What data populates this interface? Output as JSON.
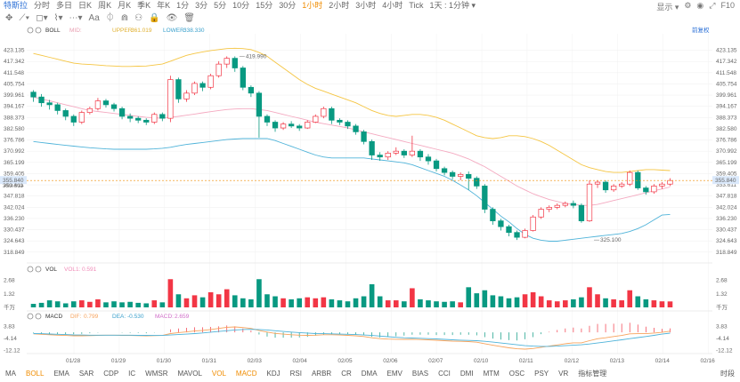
{
  "toolbar": {
    "title": "特斯拉",
    "tabs": [
      "分时",
      "多日",
      "日K",
      "周K",
      "月K",
      "季K",
      "年K",
      "1分",
      "3分",
      "5分",
      "10分",
      "15分",
      "30分",
      "1小时",
      "2小时",
      "3小时",
      "4小时",
      "Tick",
      "1天 : 1分钟 ▾"
    ],
    "active_tab": "1小时",
    "right": {
      "display": "显示 ▾",
      "f10": "F10"
    }
  },
  "drawbar": [
    "✥",
    "⟋▾",
    "◻▾",
    "⌇▾",
    "⋯▾",
    "Aa",
    "⏀",
    "⋒",
    "⚇",
    "🔒",
    "👁",
    "🗑"
  ],
  "bottombar": {
    "items": [
      "MA",
      "BOLL",
      "EMA",
      "SAR",
      "CDP",
      "IC",
      "WMSR",
      "MAVOL",
      "VOL",
      "MACD",
      "KDJ",
      "RSI",
      "ARBR",
      "CR",
      "DMA",
      "EMV",
      "BIAS",
      "CCI",
      "DMI",
      "MTM",
      "OSC",
      "PSY",
      "VR",
      "指标管理"
    ],
    "active": [
      "BOLL",
      "VOL",
      "MACD"
    ],
    "right_label": "时段"
  },
  "colors": {
    "up": "#f23645",
    "down": "#089981",
    "upper": "#f5c542",
    "mid": "#f4a9c0",
    "lower": "#4fb3d9",
    "ma5": "#f7c15c",
    "dif": "#f7a35c",
    "dea": "#4fb3d9",
    "macd": "#e28cd8",
    "price_line": "#f08c00"
  },
  "chart_data": [
    {
      "type": "candlestick",
      "indicator": {
        "name": "BOLL",
        "params": "BOLL",
        "mid_label": "MID:",
        "mid_value": "",
        "upper_label": "UPPER:",
        "upper_value": "361.019",
        "lower_label": "LOWER:",
        "lower_value": "338.330"
      },
      "right_label": "前复权",
      "y_ticks": [
        "423.135",
        "417.342",
        "411.548",
        "405.754",
        "399.961",
        "394.167",
        "388.373",
        "382.580",
        "376.786",
        "370.992",
        "365.199",
        "359.405",
        "353.611",
        "347.818",
        "342.024",
        "336.230",
        "330.437",
        "324.643",
        "318.849"
      ],
      "ylim": [
        316,
        428
      ],
      "x_labels": [
        "01/28",
        "01/29",
        "01/30",
        "01/31",
        "02/03",
        "02/04",
        "02/05",
        "02/06",
        "02/07",
        "02/10",
        "02/11",
        "02/12",
        "02/13",
        "02/14",
        "02/16"
      ],
      "annotations": [
        {
          "text": "419.990",
          "x": 27,
          "y": 420.0
        },
        {
          "text": "325.100",
          "x": 71,
          "y": 325.1
        }
      ],
      "last_price": "355.840",
      "last_price_sub": "353.611",
      "last_value": 355.84,
      "candles": [
        [
          401.5,
          399.0,
          402.5,
          396.5
        ],
        [
          399.0,
          396.0,
          400.5,
          394.0
        ],
        [
          396.0,
          395.0,
          397.5,
          392.5
        ],
        [
          395.0,
          392.0,
          396.0,
          390.0
        ],
        [
          392.0,
          389.0,
          393.0,
          387.0
        ],
        [
          389.0,
          386.0,
          390.0,
          384.0
        ],
        [
          386.0,
          391.0,
          392.0,
          385.0
        ],
        [
          391.0,
          393.0,
          394.0,
          390.0
        ],
        [
          393.0,
          397.0,
          398.5,
          392.0
        ],
        [
          397.0,
          395.0,
          398.0,
          393.5
        ],
        [
          395.0,
          393.0,
          396.0,
          391.5
        ],
        [
          393.0,
          389.0,
          394.0,
          387.5
        ],
        [
          389.0,
          388.0,
          390.5,
          386.0
        ],
        [
          388.0,
          387.0,
          389.0,
          385.5
        ],
        [
          387.0,
          386.0,
          388.0,
          384.5
        ],
        [
          386.0,
          390.0,
          391.0,
          385.0
        ],
        [
          390.0,
          388.0,
          391.0,
          386.5
        ],
        [
          388.0,
          408.0,
          410.0,
          386.0
        ],
        [
          408.0,
          398.0,
          409.0,
          396.0
        ],
        [
          398.0,
          401.0,
          402.5,
          396.5
        ],
        [
          401.0,
          406.0,
          407.0,
          400.0
        ],
        [
          406.0,
          404.0,
          407.0,
          402.0
        ],
        [
          404.0,
          410.0,
          411.0,
          403.0
        ],
        [
          410.0,
          416.0,
          417.5,
          409.0
        ],
        [
          416.0,
          419.0,
          420.0,
          414.0
        ],
        [
          419.0,
          414.0,
          420.0,
          412.0
        ],
        [
          414.0,
          404.0,
          415.0,
          402.5
        ],
        [
          404.0,
          401.0,
          405.0,
          399.0
        ],
        [
          401.0,
          389.0,
          402.0,
          378.0
        ],
        [
          389.0,
          386.0,
          390.0,
          384.0
        ],
        [
          386.0,
          383.0,
          387.0,
          381.0
        ],
        [
          383.0,
          385.0,
          386.0,
          382.0
        ],
        [
          385.0,
          384.0,
          386.5,
          383.0
        ],
        [
          384.0,
          383.0,
          385.0,
          381.5
        ],
        [
          383.0,
          386.0,
          387.0,
          382.5
        ],
        [
          386.0,
          389.0,
          390.0,
          385.5
        ],
        [
          389.0,
          393.0,
          394.0,
          388.0
        ],
        [
          393.0,
          387.0,
          394.0,
          385.0
        ],
        [
          387.0,
          386.0,
          388.0,
          384.5
        ],
        [
          386.0,
          384.0,
          387.0,
          382.5
        ],
        [
          384.0,
          381.0,
          385.0,
          379.5
        ],
        [
          381.0,
          376.0,
          382.0,
          374.5
        ],
        [
          376.0,
          369.0,
          377.0,
          366.5
        ],
        [
          369.0,
          368.0,
          370.5,
          366.0
        ],
        [
          368.0,
          370.0,
          371.0,
          366.5
        ],
        [
          370.0,
          371.0,
          373.0,
          369.0
        ],
        [
          371.0,
          369.0,
          372.0,
          367.5
        ],
        [
          369.0,
          371.0,
          379.0,
          368.0
        ],
        [
          371.0,
          368.0,
          372.0,
          366.0
        ],
        [
          368.0,
          366.0,
          369.5,
          364.0
        ],
        [
          366.0,
          362.0,
          367.0,
          360.5
        ],
        [
          362.0,
          360.0,
          363.0,
          358.5
        ],
        [
          360.0,
          358.0,
          361.0,
          356.5
        ],
        [
          358.0,
          359.0,
          360.0,
          356.0
        ],
        [
          359.0,
          357.0,
          360.5,
          351.0
        ],
        [
          357.0,
          353.0,
          358.0,
          351.5
        ],
        [
          353.0,
          341.0,
          354.0,
          339.0
        ],
        [
          341.0,
          335.0,
          342.0,
          333.0
        ],
        [
          335.0,
          332.0,
          336.0,
          330.0
        ],
        [
          332.0,
          329.0,
          333.0,
          327.0
        ],
        [
          329.0,
          326.5,
          330.0,
          325.1
        ],
        [
          326.5,
          330.0,
          331.0,
          326.0
        ],
        [
          330.0,
          337.0,
          338.0,
          329.5
        ],
        [
          337.0,
          341.0,
          342.0,
          336.0
        ],
        [
          341.0,
          342.0,
          343.0,
          339.5
        ],
        [
          342.0,
          343.0,
          344.0,
          341.0
        ],
        [
          343.0,
          344.0,
          345.0,
          342.0
        ],
        [
          344.0,
          343.0,
          345.5,
          341.5
        ],
        [
          343.0,
          335.0,
          344.0,
          334.0
        ],
        [
          335.0,
          354.0,
          356.0,
          334.5
        ],
        [
          354.0,
          355.0,
          356.0,
          352.0
        ],
        [
          355.0,
          351.0,
          356.0,
          349.5
        ],
        [
          351.0,
          353.0,
          354.0,
          350.0
        ],
        [
          353.0,
          354.0,
          355.0,
          352.0
        ],
        [
          354.0,
          360.0,
          361.0,
          353.0
        ],
        [
          360.0,
          352.0,
          361.0,
          351.0
        ],
        [
          352.0,
          350.0,
          353.0,
          348.5
        ],
        [
          350.0,
          353.0,
          354.0,
          349.0
        ],
        [
          353.0,
          354.0,
          355.0,
          351.5
        ],
        [
          354.0,
          355.84,
          357.0,
          353.0
        ]
      ],
      "upper": [
        421.5,
        420.5,
        419.5,
        418.5,
        417.5,
        416.5,
        416.0,
        415.8,
        415.5,
        415.2,
        415.0,
        414.8,
        414.8,
        414.9,
        415.0,
        415.5,
        416.0,
        417.5,
        419.0,
        420.5,
        421.5,
        422.3,
        423.0,
        423.5,
        424.0,
        424.2,
        424.0,
        423.5,
        422.0,
        420.0,
        417.0,
        414.0,
        411.0,
        408.0,
        405.5,
        403.5,
        402.0,
        400.5,
        399.0,
        397.5,
        396.0,
        394.0,
        392.0,
        390.5,
        389.5,
        389.0,
        389.5,
        390.0,
        390.0,
        389.5,
        388.5,
        387.0,
        385.0,
        383.0,
        381.0,
        379.0,
        378.0,
        377.5,
        378.0,
        379.0,
        379.0,
        378.5,
        377.5,
        376.0,
        374.0,
        371.5,
        369.0,
        366.5,
        364.0,
        362.5,
        361.5,
        360.5,
        360.0,
        360.0,
        360.5,
        361.0,
        361.5,
        361.5,
        361.2,
        361.0
      ],
      "mid": [
        399.0,
        398.0,
        397.0,
        396.0,
        395.0,
        394.0,
        393.0,
        392.0,
        391.5,
        391.0,
        390.5,
        390.0,
        389.5,
        389.0,
        388.5,
        388.2,
        388.0,
        388.5,
        389.0,
        389.6,
        390.2,
        390.8,
        391.4,
        392.0,
        392.5,
        392.8,
        393.0,
        393.0,
        392.5,
        392.0,
        391.0,
        390.0,
        389.0,
        388.0,
        387.0,
        386.0,
        385.2,
        384.5,
        383.8,
        383.0,
        382.0,
        381.0,
        380.0,
        379.0,
        378.0,
        377.0,
        376.0,
        375.0,
        374.0,
        373.0,
        372.0,
        371.0,
        370.0,
        368.5,
        367.0,
        365.0,
        363.0,
        360.5,
        358.0,
        355.5,
        353.0,
        351.0,
        349.0,
        347.5,
        346.0,
        345.0,
        344.0,
        343.5,
        343.0,
        343.0,
        343.5,
        344.5,
        345.5,
        346.5,
        347.5,
        348.5,
        349.5,
        350.5,
        351.5,
        352.5
      ],
      "lower": [
        376.0,
        375.5,
        375.0,
        374.5,
        374.0,
        373.6,
        373.2,
        372.8,
        372.5,
        372.2,
        372.0,
        372.0,
        372.0,
        372.0,
        372.0,
        372.2,
        372.5,
        373.0,
        373.8,
        374.5,
        375.0,
        375.5,
        376.0,
        376.5,
        377.0,
        377.3,
        377.5,
        377.5,
        377.5,
        377.5,
        376.5,
        375.0,
        373.5,
        372.0,
        370.5,
        369.0,
        368.0,
        367.5,
        367.5,
        367.5,
        367.5,
        367.5,
        367.0,
        366.5,
        366.0,
        365.5,
        365.0,
        364.0,
        362.5,
        361.0,
        359.5,
        358.0,
        356.0,
        353.5,
        351.0,
        348.0,
        344.5,
        341.0,
        337.5,
        334.5,
        331.0,
        328.0,
        326.0,
        325.0,
        324.5,
        324.5,
        325.0,
        325.5,
        326.0,
        326.5,
        327.0,
        327.5,
        328.0,
        328.5,
        329.5,
        331.0,
        333.0,
        335.5,
        338.0,
        338.33
      ]
    },
    {
      "type": "bar",
      "indicator": {
        "name": "VOL",
        "v1_label": "VOL1:",
        "v1_value": "0.591"
      },
      "y_ticks": [
        "2.68",
        "1.32",
        "千万"
      ],
      "ylim": [
        0,
        3.0
      ],
      "values": [
        0.35,
        0.45,
        0.7,
        0.6,
        0.4,
        0.6,
        0.7,
        0.55,
        0.8,
        0.5,
        0.6,
        0.5,
        0.55,
        0.45,
        0.4,
        0.7,
        0.5,
        2.8,
        1.3,
        0.9,
        1.2,
        1.0,
        1.5,
        1.3,
        1.8,
        1.2,
        0.9,
        0.8,
        2.8,
        1.3,
        1.1,
        0.9,
        0.8,
        0.9,
        1.0,
        0.9,
        1.0,
        0.8,
        0.7,
        0.6,
        0.9,
        1.1,
        2.3,
        1.1,
        0.7,
        0.7,
        0.6,
        1.9,
        0.8,
        0.7,
        0.6,
        0.55,
        0.6,
        0.5,
        2.0,
        1.4,
        1.7,
        1.2,
        1.1,
        0.9,
        1.0,
        1.3,
        1.5,
        1.1,
        0.7,
        0.6,
        0.7,
        0.8,
        1.0,
        2.0,
        1.3,
        0.9,
        0.8,
        0.7,
        1.7,
        1.1,
        0.8,
        0.7,
        0.6,
        0.59
      ],
      "up_flags": [
        0,
        0,
        0,
        0,
        0,
        0,
        1,
        1,
        1,
        0,
        0,
        0,
        0,
        0,
        0,
        1,
        0,
        1,
        0,
        1,
        1,
        0,
        1,
        1,
        1,
        0,
        0,
        0,
        0,
        0,
        0,
        1,
        0,
        0,
        1,
        1,
        1,
        0,
        0,
        0,
        0,
        0,
        0,
        0,
        1,
        1,
        0,
        1,
        0,
        0,
        0,
        0,
        0,
        1,
        0,
        0,
        0,
        0,
        0,
        0,
        0,
        1,
        1,
        1,
        1,
        1,
        1,
        0,
        0,
        1,
        1,
        0,
        1,
        1,
        1,
        0,
        0,
        1,
        1,
        1
      ]
    },
    {
      "type": "line",
      "indicator": {
        "name": "MACD",
        "dif_label": "DIF:",
        "dif_value": "0.799",
        "dea_label": "DEA:",
        "dea_value": "-0.530",
        "macd_label": "MACD:",
        "macd_value": "2.659"
      },
      "y_ticks": [
        "3.83",
        "-4.14",
        "-12.12"
      ],
      "ylim": [
        -13,
        6
      ],
      "dif": [
        -1.0,
        -1.3,
        -1.6,
        -1.9,
        -2.1,
        -2.3,
        -2.3,
        -2.2,
        -2.0,
        -1.9,
        -1.9,
        -2.0,
        -2.1,
        -2.2,
        -2.3,
        -2.2,
        -2.1,
        -0.8,
        -0.2,
        0.3,
        0.9,
        1.3,
        1.9,
        2.6,
        3.4,
        3.6,
        3.2,
        2.6,
        1.2,
        0.2,
        -0.7,
        -1.2,
        -1.6,
        -1.9,
        -2.0,
        -1.9,
        -1.6,
        -1.6,
        -1.8,
        -2.0,
        -2.3,
        -2.8,
        -3.6,
        -4.2,
        -4.5,
        -4.6,
        -4.7,
        -4.6,
        -4.8,
        -5.0,
        -5.3,
        -5.6,
        -5.9,
        -6.0,
        -6.2,
        -6.6,
        -7.6,
        -8.6,
        -9.5,
        -10.3,
        -11.0,
        -11.2,
        -10.8,
        -10.0,
        -9.2,
        -8.4,
        -7.6,
        -7.0,
        -7.0,
        -5.6,
        -4.3,
        -3.6,
        -2.8,
        -2.1,
        -1.0,
        -0.9,
        -0.9,
        -0.5,
        0.0,
        0.799
      ],
      "dea": [
        -0.8,
        -0.9,
        -1.1,
        -1.3,
        -1.5,
        -1.7,
        -1.8,
        -1.9,
        -1.9,
        -1.9,
        -1.9,
        -1.9,
        -1.9,
        -2.0,
        -2.0,
        -2.1,
        -2.1,
        -1.8,
        -1.5,
        -1.2,
        -0.8,
        -0.4,
        0.1,
        0.6,
        1.1,
        1.6,
        1.9,
        2.0,
        1.9,
        1.6,
        1.1,
        0.6,
        0.2,
        -0.2,
        -0.5,
        -0.8,
        -0.9,
        -1.0,
        -1.2,
        -1.3,
        -1.5,
        -1.8,
        -2.1,
        -2.5,
        -2.9,
        -3.3,
        -3.6,
        -3.8,
        -4.0,
        -4.2,
        -4.4,
        -4.7,
        -5.0,
        -5.2,
        -5.4,
        -5.6,
        -6.0,
        -6.5,
        -7.1,
        -7.7,
        -8.3,
        -8.9,
        -9.2,
        -9.4,
        -9.4,
        -9.2,
        -8.9,
        -8.6,
        -8.3,
        -7.8,
        -7.1,
        -6.4,
        -5.7,
        -5.0,
        -4.2,
        -3.5,
        -2.8,
        -2.0,
        -1.2,
        -0.53
      ]
    }
  ]
}
